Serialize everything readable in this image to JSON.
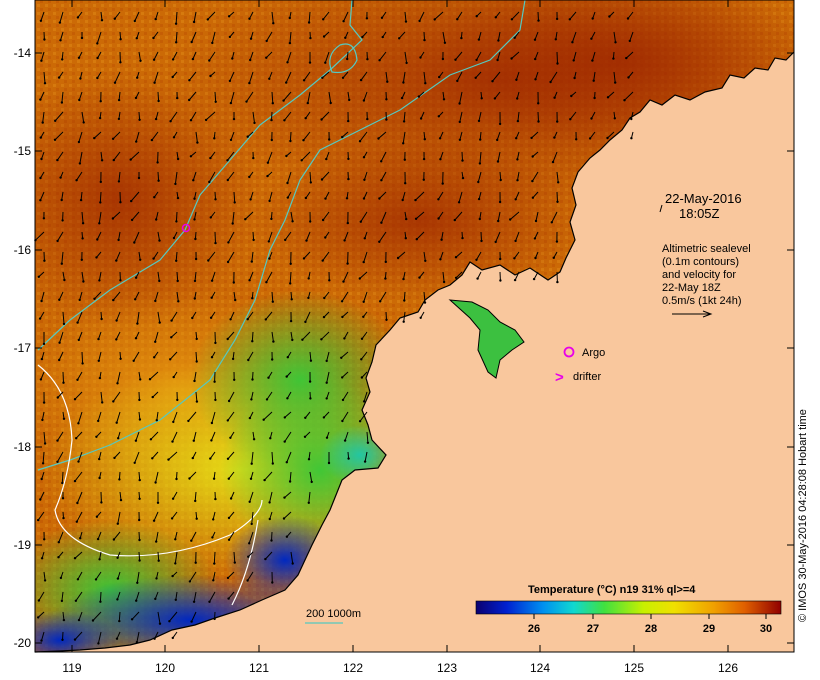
{
  "map": {
    "date_line1": "22-May-2016",
    "date_line2": "18:05Z",
    "legend_lines": [
      "Altimetric sealevel",
      "(0.1m contours)",
      "and velocity for",
      "22-May 18Z",
      "0.5m/s (1kt 24h)"
    ],
    "argo_label": "Argo",
    "drifter_label": "drifter",
    "drifter_symbol": ">",
    "depth_legend": "200  1000m",
    "colorbar_title": "Temperature (°C) n19 31% ql>=4",
    "colorbar_ticks": [
      "26",
      "27",
      "28",
      "29",
      "30"
    ],
    "x_ticks": [
      "119",
      "120",
      "121",
      "122",
      "123",
      "124",
      "125",
      "126"
    ],
    "y_ticks": [
      "-14",
      "-15",
      "-16",
      "-17",
      "-18",
      "-19",
      "-20"
    ],
    "timestamp": "© IMOS 30-May-2016 04:28:08 Hobart time",
    "colors": {
      "land": "#f9c79d",
      "isobath": "#56c9c0",
      "argo": "#e800e8",
      "coast": "#000000",
      "contour": "#ffffff"
    }
  }
}
